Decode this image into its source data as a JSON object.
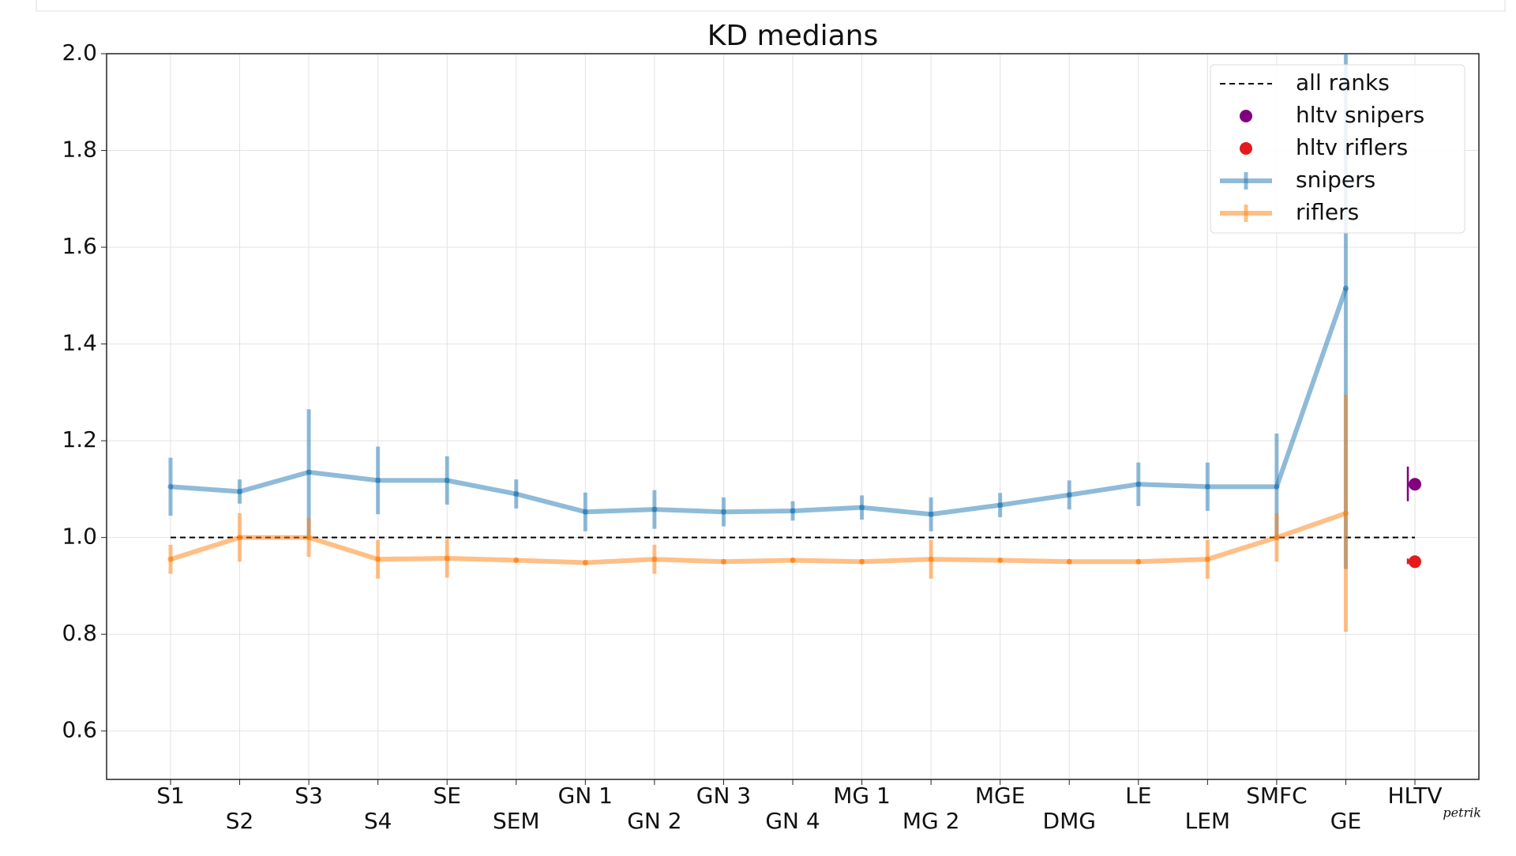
{
  "chart_data": {
    "type": "line",
    "title": "KD medians",
    "categories": [
      "S1",
      "S2",
      "S3",
      "S4",
      "SE",
      "SEM",
      "GN 1",
      "GN 2",
      "GN 3",
      "GN 4",
      "MG 1",
      "MG 2",
      "MGE",
      "DMG",
      "LE",
      "LEM",
      "SMFC",
      "GE",
      "HLTV"
    ],
    "series": [
      {
        "name": "all ranks",
        "color": "#000000",
        "style": "dashed",
        "values": [
          1.0,
          1.0,
          1.0,
          1.0,
          1.0,
          1.0,
          1.0,
          1.0,
          1.0,
          1.0,
          1.0,
          1.0,
          1.0,
          1.0,
          1.0,
          1.0,
          1.0,
          1.0,
          1.0
        ]
      },
      {
        "name": "hltv snipers",
        "color": "#800080",
        "style": "dot",
        "values": [
          null,
          null,
          null,
          null,
          null,
          null,
          null,
          null,
          null,
          null,
          null,
          null,
          null,
          null,
          null,
          null,
          null,
          null,
          1.11
        ],
        "errors": [
          null,
          null,
          null,
          null,
          null,
          null,
          null,
          null,
          null,
          null,
          null,
          null,
          null,
          null,
          null,
          null,
          null,
          null,
          0.035
        ]
      },
      {
        "name": "hltv riflers",
        "color": "#e41a1c",
        "style": "dot",
        "values": [
          null,
          null,
          null,
          null,
          null,
          null,
          null,
          null,
          null,
          null,
          null,
          null,
          null,
          null,
          null,
          null,
          null,
          null,
          0.95
        ],
        "errors": [
          null,
          null,
          null,
          null,
          null,
          null,
          null,
          null,
          null,
          null,
          null,
          null,
          null,
          null,
          null,
          null,
          null,
          null,
          0.005
        ]
      },
      {
        "name": "snipers",
        "color": "#1f77b4",
        "style": "errorbar",
        "values": [
          1.105,
          1.095,
          1.135,
          1.118,
          1.118,
          1.09,
          1.053,
          1.058,
          1.053,
          1.055,
          1.062,
          1.048,
          1.067,
          1.088,
          1.11,
          1.105,
          1.105,
          1.515,
          null
        ],
        "errors": [
          0.06,
          0.025,
          0.13,
          0.07,
          0.05,
          0.03,
          0.04,
          0.04,
          0.03,
          0.02,
          0.025,
          0.035,
          0.025,
          0.03,
          0.045,
          0.05,
          0.11,
          0.58,
          null
        ]
      },
      {
        "name": "riflers",
        "color": "#ff7f0e",
        "style": "errorbar",
        "values": [
          0.955,
          1.0,
          1.0,
          0.955,
          0.957,
          0.953,
          0.948,
          0.955,
          0.95,
          0.953,
          0.95,
          0.955,
          0.953,
          0.95,
          0.95,
          0.955,
          1.0,
          1.05,
          null
        ],
        "errors": [
          0.03,
          0.05,
          0.04,
          0.04,
          0.04,
          0.005,
          0.005,
          0.03,
          0.005,
          0.005,
          0.005,
          0.04,
          0.005,
          0.005,
          0.005,
          0.04,
          0.05,
          0.245,
          null
        ]
      }
    ],
    "ylim": [
      0.5,
      2.0
    ],
    "yticks": [
      {
        "value": 0.6,
        "label": "0.6"
      },
      {
        "value": 0.8,
        "label": "0.8"
      },
      {
        "value": 1.0,
        "label": "1.0"
      },
      {
        "value": 1.2,
        "label": "1.2"
      },
      {
        "value": 1.4,
        "label": "1.4"
      },
      {
        "value": 1.6,
        "label": "1.6"
      },
      {
        "value": 1.8,
        "label": "1.8"
      },
      {
        "value": 2.0,
        "label": "2.0"
      }
    ],
    "grid": true,
    "legend": "upper right",
    "annotation": "petrik"
  }
}
